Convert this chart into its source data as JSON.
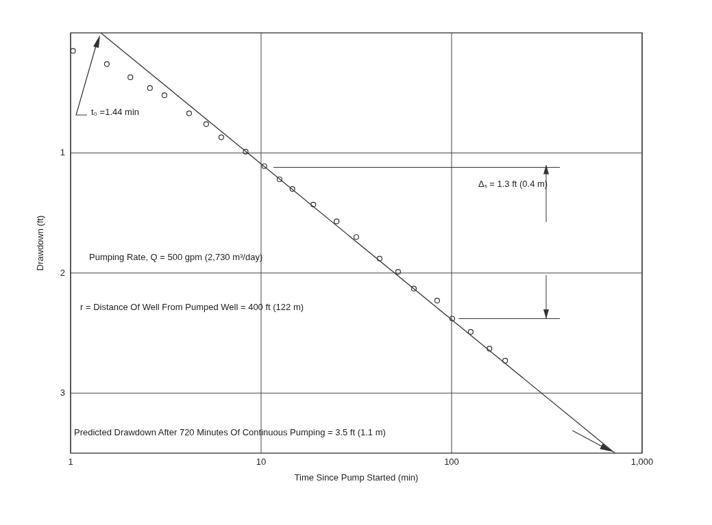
{
  "chart_data": {
    "type": "scatter",
    "xlabel": "Time Since Pump Started (min)",
    "ylabel": "Drawdown (ft)",
    "log": "x",
    "xlim": [
      1,
      1000
    ],
    "xticks": [
      1,
      10,
      100,
      {
        "value": 1000,
        "label": "1,000"
      }
    ],
    "ylim": [
      3.5,
      0
    ],
    "yticks": [
      1,
      2,
      3
    ],
    "grid": true,
    "marker": "circle",
    "series": [
      {
        "color": "#333333",
        "x": [
          1.03,
          1.55,
          2.06,
          2.61,
          3.11,
          4.19,
          5.15,
          6.18,
          8.3,
          10.4,
          12.5,
          14.6,
          18.8,
          24.9,
          31.6,
          41.9,
          52.4,
          63.4,
          84,
          100.8,
          126,
          158,
          191
        ],
        "values": [
          0.15,
          0.26,
          0.37,
          0.46,
          0.52,
          0.67,
          0.76,
          0.87,
          0.99,
          1.11,
          1.22,
          1.3,
          1.43,
          1.57,
          1.7,
          1.88,
          1.99,
          2.13,
          2.23,
          2.38,
          2.49,
          2.63,
          2.73
        ]
      },
      {
        "type": "line",
        "color": "#333333",
        "marker": "none",
        "x": [
          1.44,
          720
        ],
        "values": [
          0,
          3.5
        ]
      }
    ],
    "annotations": [
      "t₀ =1.44 min",
      "Δₛ = 1.3 ft (0.4 m)",
      "Pumping Rate, Q = 500 gpm (2,730 m³/day)",
      "r = Distance Of Well From Pumped Well = 400 ft (122 m)",
      "Predicted Drawdown After 720 Minutes Of Continuous Pumping = 3.5 ft (1.1 m)"
    ],
    "ref_lines": [
      {
        "axis": "y",
        "value": 1.12,
        "color": "#333333"
      },
      {
        "axis": "y",
        "value": 2.38,
        "color": "#333333"
      }
    ]
  }
}
